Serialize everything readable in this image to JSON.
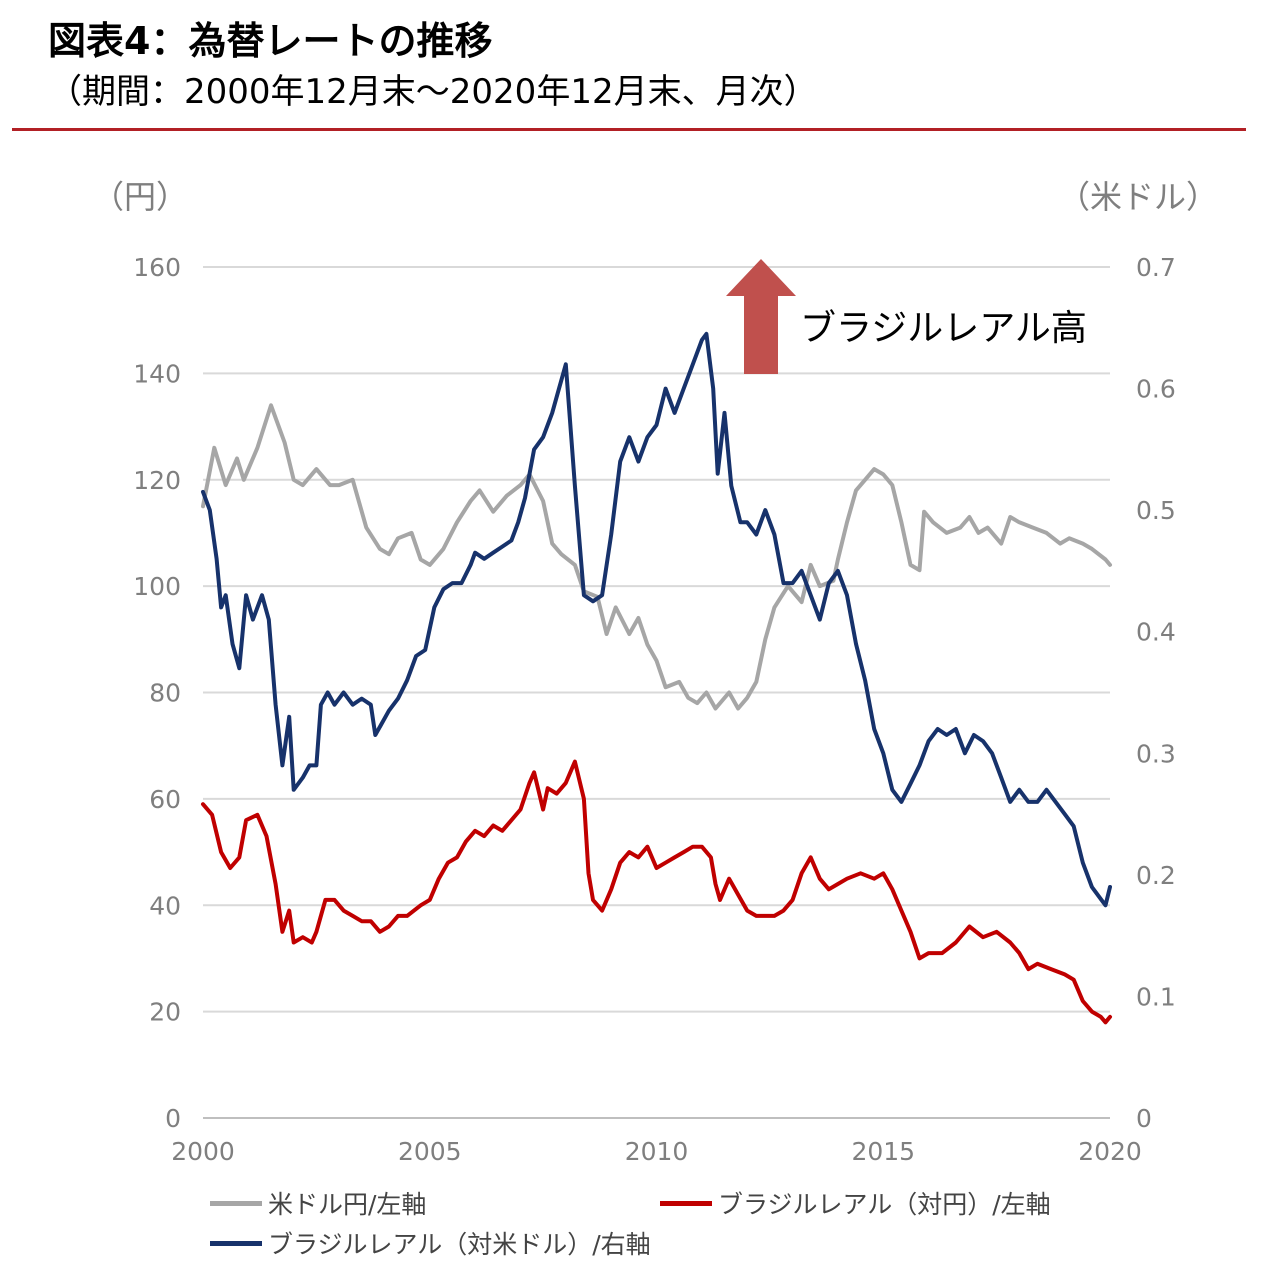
{
  "title": {
    "line1": "図表4：為替レートの推移",
    "line2": "（期間：2000年12月末～2020年12月末、月次）"
  },
  "units": {
    "left": "（円）",
    "right": "（米ドル）"
  },
  "colors": {
    "usdjpy": "#a6a6a6",
    "brljpy": "#c00000",
    "brlusd": "#17326b",
    "arrow": "#c0504d",
    "accent_rule": "#b22025"
  },
  "chart_data": {
    "type": "line",
    "annotation": {
      "text": "ブラジルレアル高",
      "direction": "up"
    },
    "x_ticks": [
      "2000",
      "2005",
      "2010",
      "2015",
      "2020"
    ],
    "xlim": [
      2000,
      2020
    ],
    "y_left": {
      "lim": [
        0,
        160
      ],
      "ticks": [
        "0",
        "20",
        "40",
        "60",
        "80",
        "100",
        "120",
        "140",
        "160"
      ]
    },
    "y_right": {
      "lim": [
        0,
        0.7
      ],
      "ticks": [
        "0",
        "0.1",
        "0.2",
        "0.3",
        "0.4",
        "0.5",
        "0.6",
        "0.7"
      ]
    },
    "grid": true,
    "legend_position": "bottom",
    "series": [
      {
        "name": "米ドル円/左軸",
        "axis": "left",
        "color": "#a6a6a6",
        "points": [
          [
            2000.0,
            115
          ],
          [
            2000.25,
            126
          ],
          [
            2000.5,
            119
          ],
          [
            2000.75,
            124
          ],
          [
            2000.9,
            120
          ],
          [
            2001.2,
            126
          ],
          [
            2001.5,
            134
          ],
          [
            2001.8,
            127
          ],
          [
            2002.0,
            120
          ],
          [
            2002.2,
            119
          ],
          [
            2002.5,
            122
          ],
          [
            2002.8,
            119
          ],
          [
            2003.0,
            119
          ],
          [
            2003.3,
            120
          ],
          [
            2003.6,
            111
          ],
          [
            2003.9,
            107
          ],
          [
            2004.1,
            106
          ],
          [
            2004.3,
            109
          ],
          [
            2004.6,
            110
          ],
          [
            2004.8,
            105
          ],
          [
            2005.0,
            104
          ],
          [
            2005.3,
            107
          ],
          [
            2005.6,
            112
          ],
          [
            2005.9,
            116
          ],
          [
            2006.1,
            118
          ],
          [
            2006.4,
            114
          ],
          [
            2006.7,
            117
          ],
          [
            2007.0,
            119
          ],
          [
            2007.2,
            121
          ],
          [
            2007.5,
            116
          ],
          [
            2007.7,
            108
          ],
          [
            2007.9,
            106
          ],
          [
            2008.2,
            104
          ],
          [
            2008.4,
            99
          ],
          [
            2008.7,
            98
          ],
          [
            2008.9,
            91
          ],
          [
            2009.1,
            96
          ],
          [
            2009.4,
            91
          ],
          [
            2009.6,
            94
          ],
          [
            2009.8,
            89
          ],
          [
            2010.0,
            86
          ],
          [
            2010.2,
            81
          ],
          [
            2010.5,
            82
          ],
          [
            2010.7,
            79
          ],
          [
            2010.9,
            78
          ],
          [
            2011.1,
            80
          ],
          [
            2011.3,
            77
          ],
          [
            2011.6,
            80
          ],
          [
            2011.8,
            77
          ],
          [
            2012.0,
            79
          ],
          [
            2012.2,
            82
          ],
          [
            2012.4,
            90
          ],
          [
            2012.6,
            96
          ],
          [
            2012.9,
            100
          ],
          [
            2013.2,
            97
          ],
          [
            2013.4,
            104
          ],
          [
            2013.6,
            100
          ],
          [
            2013.9,
            101
          ],
          [
            2014.0,
            105
          ],
          [
            2014.2,
            112
          ],
          [
            2014.4,
            118
          ],
          [
            2014.6,
            120
          ],
          [
            2014.8,
            122
          ],
          [
            2015.0,
            121
          ],
          [
            2015.2,
            119
          ],
          [
            2015.4,
            112
          ],
          [
            2015.6,
            104
          ],
          [
            2015.8,
            103
          ],
          [
            2015.9,
            114
          ],
          [
            2016.1,
            112
          ],
          [
            2016.4,
            110
          ],
          [
            2016.7,
            111
          ],
          [
            2016.9,
            113
          ],
          [
            2017.1,
            110
          ],
          [
            2017.3,
            111
          ],
          [
            2017.6,
            108
          ],
          [
            2017.8,
            113
          ],
          [
            2018.0,
            112
          ],
          [
            2018.3,
            111
          ],
          [
            2018.6,
            110
          ],
          [
            2018.9,
            108
          ],
          [
            2019.1,
            109
          ],
          [
            2019.4,
            108
          ],
          [
            2019.6,
            107
          ],
          [
            2019.9,
            105
          ],
          [
            2020.0,
            104
          ]
        ]
      },
      {
        "name": "ブラジルレアル（対円）/左軸",
        "axis": "left",
        "color": "#c00000",
        "points": [
          [
            2000.0,
            59
          ],
          [
            2000.2,
            57
          ],
          [
            2000.4,
            50
          ],
          [
            2000.6,
            47
          ],
          [
            2000.8,
            49
          ],
          [
            2000.95,
            56
          ],
          [
            2001.2,
            57
          ],
          [
            2001.4,
            53
          ],
          [
            2001.6,
            44
          ],
          [
            2001.75,
            35
          ],
          [
            2001.9,
            39
          ],
          [
            2002.0,
            33
          ],
          [
            2002.2,
            34
          ],
          [
            2002.4,
            33
          ],
          [
            2002.5,
            35
          ],
          [
            2002.7,
            41
          ],
          [
            2002.9,
            41
          ],
          [
            2003.1,
            39
          ],
          [
            2003.3,
            38
          ],
          [
            2003.5,
            37
          ],
          [
            2003.7,
            37
          ],
          [
            2003.9,
            35
          ],
          [
            2004.1,
            36
          ],
          [
            2004.3,
            38
          ],
          [
            2004.5,
            38
          ],
          [
            2004.8,
            40
          ],
          [
            2005.0,
            41
          ],
          [
            2005.2,
            45
          ],
          [
            2005.4,
            48
          ],
          [
            2005.6,
            49
          ],
          [
            2005.8,
            52
          ],
          [
            2006.0,
            54
          ],
          [
            2006.2,
            53
          ],
          [
            2006.4,
            55
          ],
          [
            2006.6,
            54
          ],
          [
            2006.8,
            56
          ],
          [
            2007.0,
            58
          ],
          [
            2007.2,
            63
          ],
          [
            2007.3,
            65
          ],
          [
            2007.5,
            58
          ],
          [
            2007.6,
            62
          ],
          [
            2007.8,
            61
          ],
          [
            2008.0,
            63
          ],
          [
            2008.2,
            67
          ],
          [
            2008.4,
            60
          ],
          [
            2008.5,
            46
          ],
          [
            2008.6,
            41
          ],
          [
            2008.8,
            39
          ],
          [
            2009.0,
            43
          ],
          [
            2009.2,
            48
          ],
          [
            2009.4,
            50
          ],
          [
            2009.6,
            49
          ],
          [
            2009.8,
            51
          ],
          [
            2010.0,
            47
          ],
          [
            2010.2,
            48
          ],
          [
            2010.4,
            49
          ],
          [
            2010.6,
            50
          ],
          [
            2010.8,
            51
          ],
          [
            2011.0,
            51
          ],
          [
            2011.2,
            49
          ],
          [
            2011.3,
            44
          ],
          [
            2011.4,
            41
          ],
          [
            2011.6,
            45
          ],
          [
            2011.8,
            42
          ],
          [
            2012.0,
            39
          ],
          [
            2012.2,
            38
          ],
          [
            2012.4,
            38
          ],
          [
            2012.6,
            38
          ],
          [
            2012.8,
            39
          ],
          [
            2013.0,
            41
          ],
          [
            2013.2,
            46
          ],
          [
            2013.4,
            49
          ],
          [
            2013.6,
            45
          ],
          [
            2013.8,
            43
          ],
          [
            2014.0,
            44
          ],
          [
            2014.2,
            45
          ],
          [
            2014.5,
            46
          ],
          [
            2014.8,
            45
          ],
          [
            2015.0,
            46
          ],
          [
            2015.2,
            43
          ],
          [
            2015.4,
            39
          ],
          [
            2015.6,
            35
          ],
          [
            2015.8,
            30
          ],
          [
            2016.0,
            31
          ],
          [
            2016.3,
            31
          ],
          [
            2016.6,
            33
          ],
          [
            2016.9,
            36
          ],
          [
            2017.2,
            34
          ],
          [
            2017.5,
            35
          ],
          [
            2017.8,
            33
          ],
          [
            2018.0,
            31
          ],
          [
            2018.2,
            28
          ],
          [
            2018.4,
            29
          ],
          [
            2018.7,
            28
          ],
          [
            2019.0,
            27
          ],
          [
            2019.2,
            26
          ],
          [
            2019.4,
            22
          ],
          [
            2019.6,
            20
          ],
          [
            2019.8,
            19
          ],
          [
            2019.9,
            18
          ],
          [
            2020.0,
            19
          ]
        ]
      },
      {
        "name": "ブラジルレアル（対米ドル）/右軸",
        "axis": "right",
        "color": "#17326b",
        "points": [
          [
            2000.0,
            0.515
          ],
          [
            2000.15,
            0.5
          ],
          [
            2000.3,
            0.46
          ],
          [
            2000.4,
            0.42
          ],
          [
            2000.5,
            0.43
          ],
          [
            2000.65,
            0.39
          ],
          [
            2000.8,
            0.37
          ],
          [
            2000.95,
            0.43
          ],
          [
            2001.1,
            0.41
          ],
          [
            2001.3,
            0.43
          ],
          [
            2001.45,
            0.41
          ],
          [
            2001.6,
            0.34
          ],
          [
            2001.75,
            0.29
          ],
          [
            2001.9,
            0.33
          ],
          [
            2002.0,
            0.27
          ],
          [
            2002.2,
            0.28
          ],
          [
            2002.35,
            0.29
          ],
          [
            2002.5,
            0.29
          ],
          [
            2002.6,
            0.34
          ],
          [
            2002.75,
            0.35
          ],
          [
            2002.9,
            0.34
          ],
          [
            2003.1,
            0.35
          ],
          [
            2003.3,
            0.34
          ],
          [
            2003.5,
            0.345
          ],
          [
            2003.7,
            0.34
          ],
          [
            2003.8,
            0.315
          ],
          [
            2003.95,
            0.325
          ],
          [
            2004.1,
            0.335
          ],
          [
            2004.3,
            0.345
          ],
          [
            2004.5,
            0.36
          ],
          [
            2004.7,
            0.38
          ],
          [
            2004.9,
            0.385
          ],
          [
            2005.1,
            0.42
          ],
          [
            2005.3,
            0.435
          ],
          [
            2005.5,
            0.44
          ],
          [
            2005.7,
            0.44
          ],
          [
            2005.9,
            0.455
          ],
          [
            2006.0,
            0.465
          ],
          [
            2006.2,
            0.46
          ],
          [
            2006.4,
            0.465
          ],
          [
            2006.6,
            0.47
          ],
          [
            2006.8,
            0.475
          ],
          [
            2006.95,
            0.49
          ],
          [
            2007.1,
            0.51
          ],
          [
            2007.3,
            0.55
          ],
          [
            2007.5,
            0.56
          ],
          [
            2007.7,
            0.58
          ],
          [
            2007.85,
            0.6
          ],
          [
            2008.0,
            0.62
          ],
          [
            2008.2,
            0.52
          ],
          [
            2008.4,
            0.43
          ],
          [
            2008.6,
            0.425
          ],
          [
            2008.8,
            0.43
          ],
          [
            2009.0,
            0.48
          ],
          [
            2009.2,
            0.54
          ],
          [
            2009.4,
            0.56
          ],
          [
            2009.6,
            0.54
          ],
          [
            2009.8,
            0.56
          ],
          [
            2010.0,
            0.57
          ],
          [
            2010.2,
            0.6
          ],
          [
            2010.4,
            0.58
          ],
          [
            2010.6,
            0.6
          ],
          [
            2010.8,
            0.62
          ],
          [
            2011.0,
            0.64
          ],
          [
            2011.1,
            0.645
          ],
          [
            2011.25,
            0.6
          ],
          [
            2011.35,
            0.53
          ],
          [
            2011.5,
            0.58
          ],
          [
            2011.65,
            0.52
          ],
          [
            2011.85,
            0.49
          ],
          [
            2012.0,
            0.49
          ],
          [
            2012.2,
            0.48
          ],
          [
            2012.4,
            0.5
          ],
          [
            2012.6,
            0.48
          ],
          [
            2012.8,
            0.44
          ],
          [
            2013.0,
            0.44
          ],
          [
            2013.2,
            0.45
          ],
          [
            2013.4,
            0.43
          ],
          [
            2013.6,
            0.41
          ],
          [
            2013.8,
            0.44
          ],
          [
            2014.0,
            0.45
          ],
          [
            2014.2,
            0.43
          ],
          [
            2014.4,
            0.39
          ],
          [
            2014.6,
            0.36
          ],
          [
            2014.8,
            0.32
          ],
          [
            2015.0,
            0.3
          ],
          [
            2015.2,
            0.27
          ],
          [
            2015.4,
            0.26
          ],
          [
            2015.6,
            0.275
          ],
          [
            2015.8,
            0.29
          ],
          [
            2016.0,
            0.31
          ],
          [
            2016.2,
            0.32
          ],
          [
            2016.4,
            0.315
          ],
          [
            2016.6,
            0.32
          ],
          [
            2016.8,
            0.3
          ],
          [
            2017.0,
            0.315
          ],
          [
            2017.2,
            0.31
          ],
          [
            2017.4,
            0.3
          ],
          [
            2017.6,
            0.28
          ],
          [
            2017.8,
            0.26
          ],
          [
            2018.0,
            0.27
          ],
          [
            2018.2,
            0.26
          ],
          [
            2018.4,
            0.26
          ],
          [
            2018.6,
            0.27
          ],
          [
            2018.8,
            0.26
          ],
          [
            2019.0,
            0.25
          ],
          [
            2019.2,
            0.24
          ],
          [
            2019.4,
            0.21
          ],
          [
            2019.6,
            0.19
          ],
          [
            2019.8,
            0.18
          ],
          [
            2019.9,
            0.175
          ],
          [
            2020.0,
            0.19
          ]
        ]
      }
    ]
  }
}
